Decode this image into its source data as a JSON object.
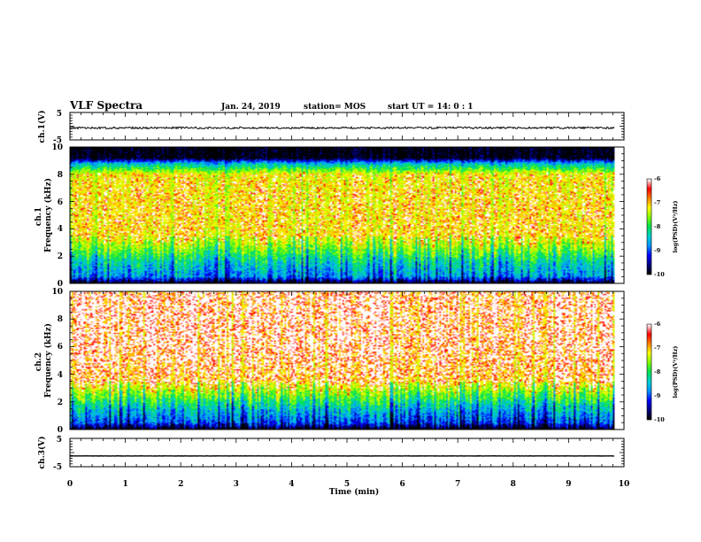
{
  "header": {
    "title": "VLF Spectra",
    "date": "Jan. 24, 2019",
    "station": "station= MOS",
    "start": "start  UT  =   14: 0  : 1"
  },
  "chart_data": {
    "type": "heatmap",
    "xlabel": "Time  (min)",
    "xlim": [
      0,
      10
    ],
    "xticks": [
      "0",
      "1",
      "2",
      "3",
      "4",
      "5",
      "6",
      "7",
      "8",
      "9",
      "10"
    ],
    "data_end_min": 9.83,
    "panels": [
      {
        "kind": "waveform",
        "ylabel": "ch.1(V)",
        "ylim": [
          -5,
          5
        ],
        "yticks": [
          "5",
          "-5"
        ],
        "level": -0.6
      },
      {
        "kind": "spectrogram",
        "ylabel": "ch.1\nFrequency (kHz)",
        "ylim": [
          0,
          10
        ],
        "yticks": [
          "0",
          "2",
          "4",
          "6",
          "8",
          "10"
        ],
        "profile": {
          "freq_khz": [
            0,
            0.5,
            1.5,
            2.5,
            3.5,
            6.5,
            8.0,
            8.8,
            9.2,
            10
          ],
          "log_psd": [
            -10,
            -8.7,
            -8.3,
            -7.6,
            -7.0,
            -7.0,
            -7.1,
            -8.5,
            -10,
            -10
          ]
        },
        "colorbar": {
          "label": "log(PSD)(V²/Hz)",
          "ticks": [
            "-6",
            "-7",
            "-8",
            "-9",
            "-10"
          ],
          "range": [
            -10,
            -6
          ]
        }
      },
      {
        "kind": "spectrogram",
        "ylabel": "ch.2\nFrequency (kHz)",
        "ylim": [
          0,
          10
        ],
        "yticks": [
          "0",
          "2",
          "4",
          "6",
          "8",
          "10"
        ],
        "profile": {
          "freq_khz": [
            0,
            0.5,
            1.5,
            2.5,
            3.5,
            6.0,
            10
          ],
          "log_psd": [
            -10,
            -9.0,
            -8.4,
            -7.6,
            -6.8,
            -6.6,
            -6.6
          ]
        },
        "colorbar": {
          "label": "log(PSD)(V²/Hz)",
          "ticks": [
            "-6",
            "-7",
            "-8",
            "-9",
            "-10"
          ],
          "range": [
            -10,
            -6
          ]
        }
      },
      {
        "kind": "waveform",
        "ylabel": "ch.3(V)",
        "ylim": [
          -5,
          5
        ],
        "yticks": [
          "5",
          "-5"
        ],
        "level": -1.2
      }
    ],
    "colormap": [
      "#000000",
      "#000080",
      "#0000ff",
      "#0096ff",
      "#00d0d0",
      "#00e050",
      "#80ff00",
      "#ffff00",
      "#ff8000",
      "#ff0000",
      "#ffffff"
    ],
    "grid": false
  }
}
